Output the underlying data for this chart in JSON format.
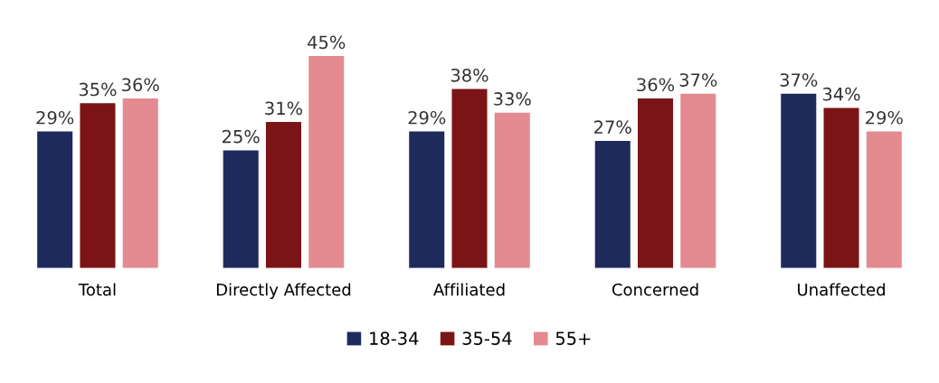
{
  "chart_data": {
    "type": "bar",
    "categories": [
      "Total",
      "Directly Affected",
      "Affiliated",
      "Concerned",
      "Unaffected"
    ],
    "series": [
      {
        "name": "18-34",
        "color": "#1f2a5c",
        "values": [
          29,
          25,
          29,
          27,
          37
        ],
        "value_labels": [
          "29%",
          "25%",
          "29%",
          "27%",
          "37%"
        ]
      },
      {
        "name": "35-54",
        "color": "#7b1416",
        "values": [
          35,
          31,
          38,
          36,
          34
        ],
        "value_labels": [
          "35%",
          "31%",
          "38%",
          "36%",
          "34%"
        ]
      },
      {
        "name": "55+",
        "color": "#e48a91",
        "values": [
          36,
          45,
          33,
          37,
          29
        ],
        "value_labels": [
          "36%",
          "45%",
          "33%",
          "37%",
          "29%"
        ]
      }
    ],
    "legend": "bottom",
    "grid": false
  }
}
